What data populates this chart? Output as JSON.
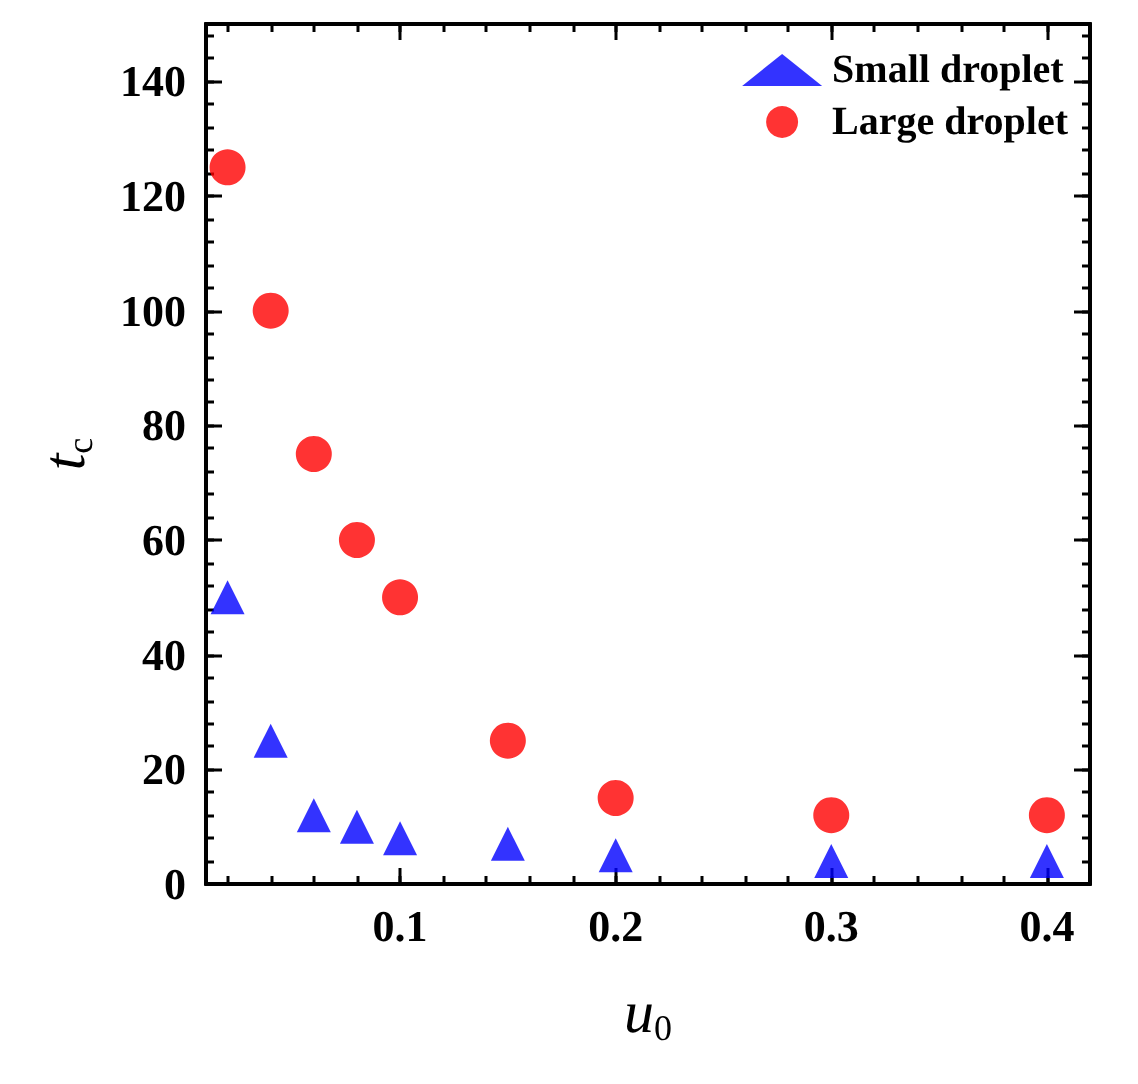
{
  "chart_data": {
    "type": "scatter",
    "xlabel": "u$_{0}$",
    "ylabel": "t$_{c}$",
    "xlim": [
      0.01,
      0.42
    ],
    "xticks": [
      0.1,
      0.2,
      0.3,
      0.4
    ],
    "ylim": [
      0,
      150
    ],
    "yticks": [
      0,
      20,
      40,
      60,
      80,
      100,
      120,
      140
    ],
    "grid": false,
    "legend": "top right",
    "series": [
      {
        "name": "Small droplet",
        "color": "#0000ff",
        "marker": "triangle",
        "x": [
          0.02,
          0.04,
          0.06,
          0.08,
          0.1,
          0.15,
          0.2,
          0.3,
          0.4
        ],
        "values": [
          50,
          25,
          12,
          10,
          8,
          7,
          5,
          4,
          4
        ]
      },
      {
        "name": "Large droplet",
        "color": "#ff0000",
        "marker": "circle",
        "x": [
          0.02,
          0.04,
          0.06,
          0.08,
          0.1,
          0.15,
          0.2,
          0.3,
          0.4
        ],
        "values": [
          125,
          100,
          75,
          60,
          50,
          25,
          15,
          12,
          12
        ]
      }
    ]
  }
}
